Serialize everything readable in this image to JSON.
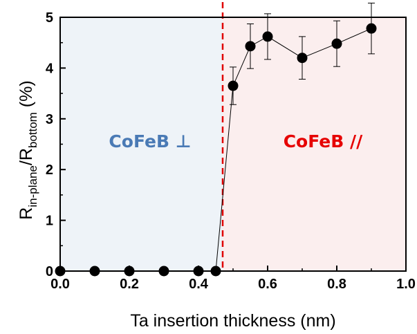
{
  "chart_data": {
    "type": "scatter",
    "xlabel": "Ta insertion thickness (nm)",
    "ylabel": {
      "R1": "R",
      "sub1": "in-plane",
      "slash": "/R",
      "sub2": "bottom",
      "unit": " (%)"
    },
    "xlim": [
      0.0,
      1.0
    ],
    "ylim": [
      0,
      5
    ],
    "x_ticks": [
      "0.0",
      "0.2",
      "0.4",
      "0.6",
      "0.8",
      "1.0"
    ],
    "y_ticks": [
      "0",
      "1",
      "2",
      "3",
      "4",
      "5"
    ],
    "grid": false,
    "threshold_x": 0.47,
    "regions": [
      {
        "label": "CoFeB ⊥",
        "x_from": 0.0,
        "x_to": 0.47,
        "fill": "#eef3f8",
        "text_color": "#4a7ab5"
      },
      {
        "label": "CoFeB //",
        "x_from": 0.47,
        "x_to": 1.0,
        "fill": "#fbeeee",
        "text_color": "#e60000"
      }
    ],
    "series": [
      {
        "marker_color": "#000000",
        "x": [
          0.0,
          0.1,
          0.2,
          0.3,
          0.4,
          0.45,
          0.5,
          0.55,
          0.6,
          0.7,
          0.8,
          0.9
        ],
        "y": [
          0,
          0,
          0,
          0,
          0,
          0,
          3.65,
          4.43,
          4.62,
          4.2,
          4.48,
          4.78
        ],
        "error": [
          0,
          0,
          0,
          0,
          0,
          0,
          0.37,
          0.44,
          0.45,
          0.42,
          0.45,
          0.5
        ]
      }
    ]
  }
}
